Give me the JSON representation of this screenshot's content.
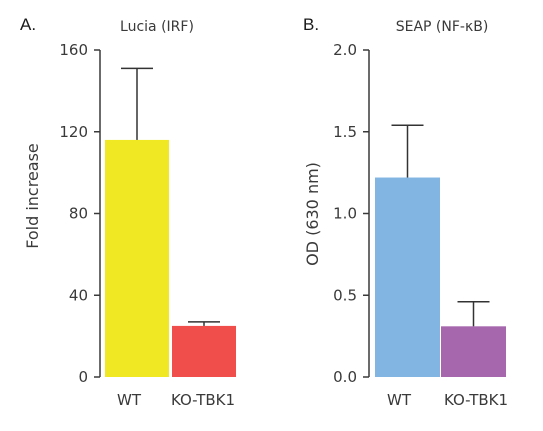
{
  "chart_data": [
    {
      "type": "bar",
      "panel": "A.",
      "title": "Lucia (IRF)",
      "ylabel": "Fold increase",
      "xlabel": "",
      "ylim": [
        0,
        160
      ],
      "yticks": [
        0,
        40,
        80,
        120,
        160
      ],
      "ytick_labels": [
        "0",
        "40",
        "80",
        "120",
        "160"
      ],
      "categories": [
        "WT",
        "KO-TBK1"
      ],
      "values": [
        116,
        25
      ],
      "errors": [
        35,
        2
      ],
      "colors": [
        "#f0e823",
        "#f04e4b"
      ],
      "grid": false,
      "legend": "none"
    },
    {
      "type": "bar",
      "panel": "B.",
      "title": "SEAP (NF-κB)",
      "ylabel": "OD (630 nm)",
      "xlabel": "",
      "ylim": [
        0,
        2.0
      ],
      "yticks": [
        0,
        0.5,
        1.0,
        1.5,
        2.0
      ],
      "ytick_labels": [
        "0.0",
        "0.5",
        "1.0",
        "1.5",
        "2.0"
      ],
      "categories": [
        "WT",
        "KO-TBK1"
      ],
      "values": [
        1.22,
        0.31
      ],
      "errors": [
        0.32,
        0.15
      ],
      "colors": [
        "#82b5e2",
        "#a667ad"
      ],
      "grid": false,
      "legend": "none"
    }
  ]
}
